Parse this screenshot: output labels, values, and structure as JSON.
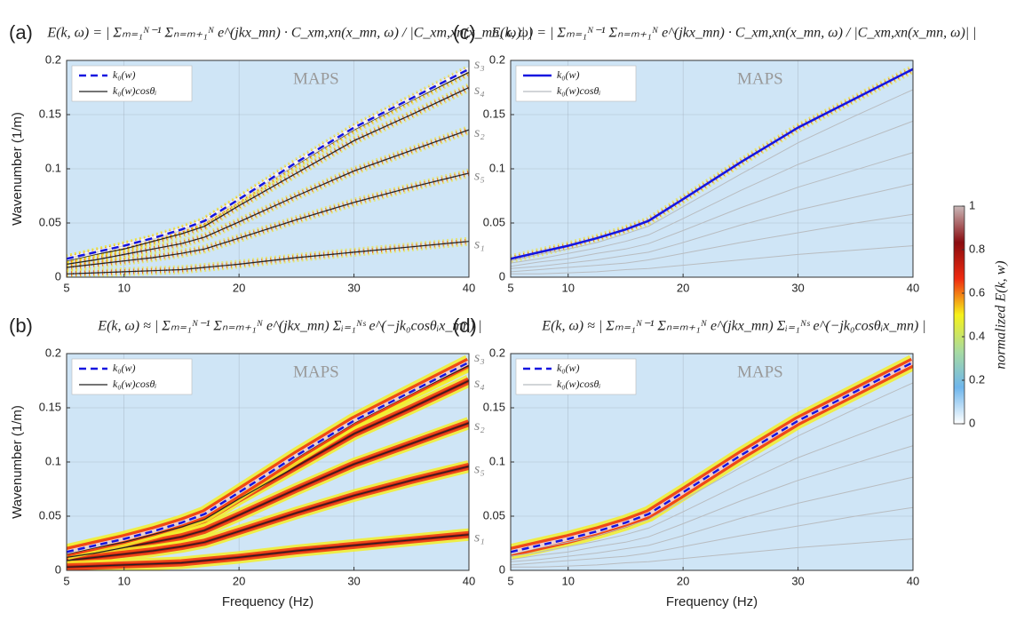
{
  "chart_data": [
    {
      "type": "heatmap-lines",
      "panel_label": "(a)",
      "title": "E(k, ω) = | Σₘ₌₁ᴺ⁻¹ Σₙ₌ₘ₊₁ᴺ e^(jkx_mn) · C_xm,xn(x_mn, ω) / |C_xm,xn(x_mn, ω)| |",
      "annotation": "MAPS",
      "ylabel": "Wavenumber (1/m)",
      "style": "speckle",
      "grid": true,
      "xlim": [
        5,
        40
      ],
      "xticks": [
        5,
        10,
        20,
        30,
        40
      ],
      "ylim": [
        0,
        0.2
      ],
      "yticks": [
        0,
        0.05,
        0.1,
        0.15,
        0.2
      ],
      "x": [
        5,
        7.5,
        10,
        12.5,
        15,
        17,
        20,
        25,
        30,
        35,
        40
      ],
      "series": [
        {
          "name": "k₀(w)",
          "color": "#1515e0",
          "dash": true,
          "values": [
            0.017,
            0.023,
            0.029,
            0.036,
            0.044,
            0.052,
            0.072,
            0.106,
            0.138,
            0.165,
            0.192
          ]
        },
        {
          "name": "k₀(w)cosθᵢ",
          "color": "#222222",
          "line_labels": [
            "s₃",
            "s₄",
            "s₂",
            "s₅",
            "s₁"
          ],
          "lines": [
            [
              0.017,
              0.023,
              0.029,
              0.035,
              0.043,
              0.051,
              0.071,
              0.104,
              0.136,
              0.163,
              0.189
            ],
            [
              0.015,
              0.021,
              0.026,
              0.033,
              0.04,
              0.047,
              0.066,
              0.096,
              0.126,
              0.15,
              0.175
            ],
            [
              0.012,
              0.016,
              0.021,
              0.026,
              0.031,
              0.037,
              0.051,
              0.075,
              0.098,
              0.117,
              0.136
            ],
            [
              0.009,
              0.012,
              0.015,
              0.018,
              0.022,
              0.026,
              0.036,
              0.053,
              0.069,
              0.083,
              0.096
            ],
            [
              0.003,
              0.004,
              0.005,
              0.006,
              0.007,
              0.009,
              0.012,
              0.018,
              0.023,
              0.028,
              0.033
            ]
          ]
        }
      ]
    },
    {
      "type": "heatmap-lines",
      "panel_label": "(c)",
      "title": "E(k, ω) = | Σₘ₌₁ᴺ⁻¹ Σₙ₌ₘ₊₁ᴺ e^(jkx_mn) · C_xm,xn(x_mn, ω) / |C_xm,xn(x_mn, ω)| |",
      "annotation": "MAPS",
      "style": "speckle",
      "grid": true,
      "xlim": [
        5,
        40
      ],
      "xticks": [
        5,
        10,
        20,
        30,
        40
      ],
      "ylim": [
        0,
        0.2
      ],
      "yticks": [
        0,
        0.05,
        0.1,
        0.15,
        0.2
      ],
      "x": [
        5,
        7.5,
        10,
        12.5,
        15,
        17,
        20,
        25,
        30,
        35,
        40
      ],
      "series": [
        {
          "name": "k₀(w)",
          "color": "#1515e0",
          "dash": false,
          "values": [
            0.017,
            0.023,
            0.029,
            0.036,
            0.044,
            0.052,
            0.072,
            0.106,
            0.138,
            0.165,
            0.192
          ]
        },
        {
          "name": "k₀(w)cosθᵢ",
          "color": "#b8bcc0",
          "lines": [
            [
              0.015,
              0.021,
              0.026,
              0.032,
              0.04,
              0.047,
              0.065,
              0.095,
              0.124,
              0.149,
              0.173
            ],
            [
              0.013,
              0.017,
              0.022,
              0.027,
              0.033,
              0.039,
              0.054,
              0.08,
              0.104,
              0.124,
              0.144
            ],
            [
              0.01,
              0.014,
              0.017,
              0.022,
              0.026,
              0.031,
              0.043,
              0.064,
              0.083,
              0.099,
              0.115
            ],
            [
              0.008,
              0.01,
              0.013,
              0.016,
              0.02,
              0.023,
              0.032,
              0.048,
              0.062,
              0.074,
              0.086
            ],
            [
              0.005,
              0.007,
              0.009,
              0.011,
              0.013,
              0.016,
              0.022,
              0.032,
              0.041,
              0.05,
              0.058
            ],
            [
              0.003,
              0.003,
              0.004,
              0.005,
              0.007,
              0.008,
              0.011,
              0.016,
              0.021,
              0.025,
              0.029
            ]
          ]
        }
      ]
    },
    {
      "type": "heatmap-lines",
      "panel_label": "(b)",
      "title": "E(k, ω) ≈ | Σₘ₌₁ᴺ⁻¹ Σₙ₌ₘ₊₁ᴺ e^(jkx_mn) Σᵢ₌₁ᴺˢ e^(−jk₀cosθᵢx_mn) |",
      "annotation": "MAPS",
      "ylabel": "Wavenumber (1/m)",
      "xlabel": "Frequency (Hz)",
      "style": "smooth",
      "grid": true,
      "xlim": [
        5,
        40
      ],
      "xticks": [
        5,
        10,
        20,
        30,
        40
      ],
      "ylim": [
        0,
        0.2
      ],
      "yticks": [
        0,
        0.05,
        0.1,
        0.15,
        0.2
      ],
      "x": [
        5,
        7.5,
        10,
        12.5,
        15,
        17,
        20,
        25,
        30,
        35,
        40
      ],
      "series": [
        {
          "name": "k₀(w)",
          "color": "#1515e0",
          "dash": true,
          "values": [
            0.017,
            0.023,
            0.029,
            0.036,
            0.044,
            0.052,
            0.072,
            0.106,
            0.138,
            0.165,
            0.192
          ]
        },
        {
          "name": "k₀(w)cosθᵢ",
          "color": "#222222",
          "line_labels": [
            "s₃",
            "s₄",
            "s₂",
            "s₅",
            "s₁"
          ],
          "lines": [
            [
              0.017,
              0.023,
              0.029,
              0.035,
              0.043,
              0.051,
              0.071,
              0.104,
              0.136,
              0.163,
              0.189
            ],
            [
              0.015,
              0.021,
              0.026,
              0.033,
              0.04,
              0.047,
              0.066,
              0.096,
              0.126,
              0.15,
              0.175
            ],
            [
              0.012,
              0.016,
              0.021,
              0.026,
              0.031,
              0.037,
              0.051,
              0.075,
              0.098,
              0.117,
              0.136
            ],
            [
              0.009,
              0.012,
              0.015,
              0.018,
              0.022,
              0.026,
              0.036,
              0.053,
              0.069,
              0.083,
              0.096
            ],
            [
              0.003,
              0.004,
              0.005,
              0.006,
              0.007,
              0.009,
              0.012,
              0.018,
              0.023,
              0.028,
              0.033
            ]
          ]
        }
      ]
    },
    {
      "type": "heatmap-lines",
      "panel_label": "(d)",
      "title": "E(k, ω) ≈ | Σₘ₌₁ᴺ⁻¹ Σₙ₌ₘ₊₁ᴺ e^(jkx_mn) Σᵢ₌₁ᴺˢ e^(−jk₀cosθᵢx_mn) |",
      "annotation": "MAPS",
      "xlabel": "Frequency (Hz)",
      "style": "smooth",
      "grid": true,
      "xlim": [
        5,
        40
      ],
      "xticks": [
        5,
        10,
        20,
        30,
        40
      ],
      "ylim": [
        0,
        0.2
      ],
      "yticks": [
        0,
        0.05,
        0.1,
        0.15,
        0.2
      ],
      "x": [
        5,
        7.5,
        10,
        12.5,
        15,
        17,
        20,
        25,
        30,
        35,
        40
      ],
      "series": [
        {
          "name": "k₀(w)",
          "color": "#1515e0",
          "dash": true,
          "values": [
            0.017,
            0.023,
            0.029,
            0.036,
            0.044,
            0.052,
            0.072,
            0.106,
            0.138,
            0.165,
            0.192
          ]
        },
        {
          "name": "k₀(w)cosθᵢ",
          "color": "#b8bcc0",
          "lines": [
            [
              0.015,
              0.021,
              0.026,
              0.032,
              0.04,
              0.047,
              0.065,
              0.095,
              0.124,
              0.149,
              0.173
            ],
            [
              0.013,
              0.017,
              0.022,
              0.027,
              0.033,
              0.039,
              0.054,
              0.08,
              0.104,
              0.124,
              0.144
            ],
            [
              0.01,
              0.014,
              0.017,
              0.022,
              0.026,
              0.031,
              0.043,
              0.064,
              0.083,
              0.099,
              0.115
            ],
            [
              0.008,
              0.01,
              0.013,
              0.016,
              0.02,
              0.023,
              0.032,
              0.048,
              0.062,
              0.074,
              0.086
            ],
            [
              0.005,
              0.007,
              0.009,
              0.011,
              0.013,
              0.016,
              0.022,
              0.032,
              0.041,
              0.05,
              0.058
            ],
            [
              0.003,
              0.003,
              0.004,
              0.005,
              0.007,
              0.008,
              0.011,
              0.016,
              0.021,
              0.025,
              0.029
            ]
          ]
        }
      ]
    }
  ],
  "colorbar": {
    "label": "normalized E(k, w)",
    "ticks": [
      0,
      0.2,
      0.4,
      0.6,
      0.8,
      1
    ],
    "colors": [
      "#ffffff",
      "#6fb6ec",
      "#a8dba0",
      "#f6f21a",
      "#ef2a10",
      "#8a0c10",
      "#c9b8b8"
    ]
  }
}
